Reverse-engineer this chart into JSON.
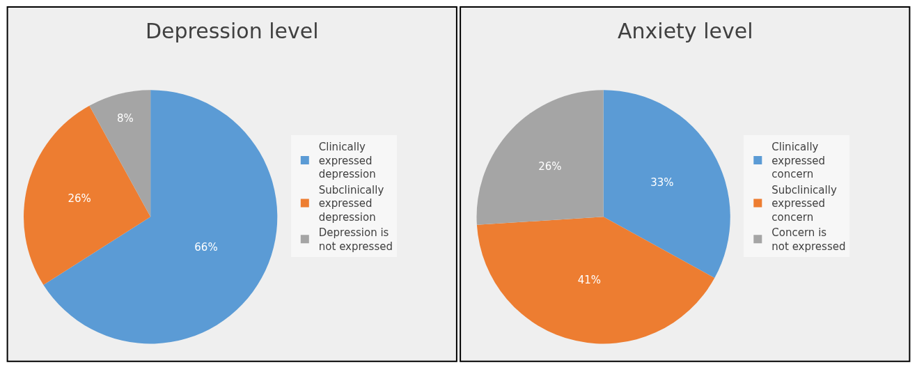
{
  "chart_data": [
    {
      "type": "pie",
      "title": "Depression level",
      "categories": [
        "Clinically expressed depression",
        "Subclinically expressed depression",
        "Depression is not expressed"
      ],
      "values": [
        66,
        26,
        8
      ],
      "value_labels": [
        "66%",
        "26%",
        "8%"
      ],
      "colors": [
        "#5b9bd5",
        "#ed7d31",
        "#a5a5a5"
      ],
      "legend": "right"
    },
    {
      "type": "pie",
      "title": "Anxiety level",
      "categories": [
        "Clinically expressed concern",
        "Subclinically expressed concern",
        "Concern is not expressed"
      ],
      "values": [
        33,
        41,
        26
      ],
      "value_labels": [
        "33%",
        "41%",
        "26%"
      ],
      "colors": [
        "#5b9bd5",
        "#ed7d31",
        "#a5a5a5"
      ],
      "legend": "right"
    }
  ]
}
